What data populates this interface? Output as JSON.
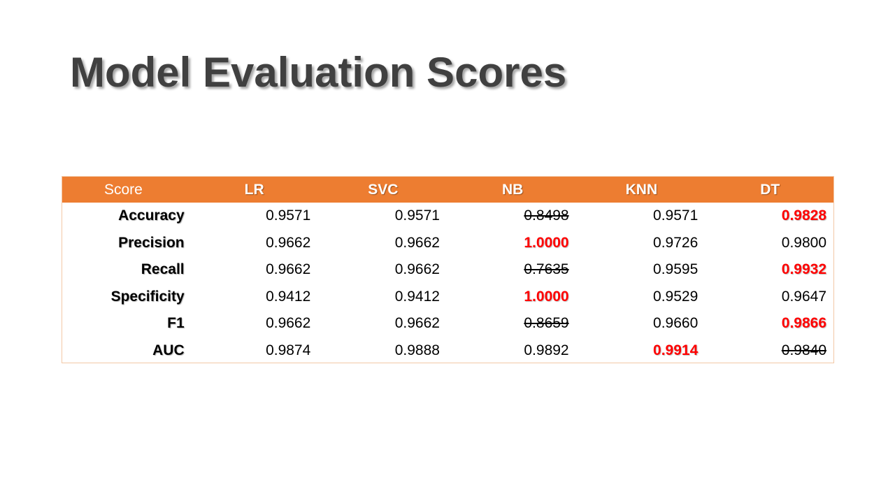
{
  "title": "Model Evaluation Scores",
  "table": {
    "headers": [
      "Score",
      "LR",
      "SVC",
      "NB",
      "KNN",
      "DT"
    ],
    "rows": [
      {
        "label": "Accuracy",
        "values": [
          "0.9571",
          "0.9571",
          "0.8498",
          "0.9571",
          "0.9828"
        ],
        "best": [
          4
        ],
        "worst": [
          2
        ]
      },
      {
        "label": "Precision",
        "values": [
          "0.9662",
          "0.9662",
          "1.0000",
          "0.9726",
          "0.9800"
        ],
        "best": [
          2
        ],
        "worst": []
      },
      {
        "label": "Recall",
        "values": [
          "0.9662",
          "0.9662",
          "0.7635",
          "0.9595",
          "0.9932"
        ],
        "best": [
          4
        ],
        "worst": [
          2
        ]
      },
      {
        "label": "Specificity",
        "values": [
          "0.9412",
          "0.9412",
          "1.0000",
          "0.9529",
          "0.9647"
        ],
        "best": [
          2
        ],
        "worst": []
      },
      {
        "label": "F1",
        "values": [
          "0.9662",
          "0.9662",
          "0.8659",
          "0.9660",
          "0.9866"
        ],
        "best": [
          4
        ],
        "worst": [
          2
        ]
      },
      {
        "label": "AUC",
        "values": [
          "0.9874",
          "0.9888",
          "0.9892",
          "0.9914",
          "0.9840"
        ],
        "best": [
          3
        ],
        "worst": [
          4
        ]
      }
    ]
  },
  "colors": {
    "header_bg": "#ed7d31",
    "title_text": "#404040",
    "best_text": "#ff0000"
  }
}
